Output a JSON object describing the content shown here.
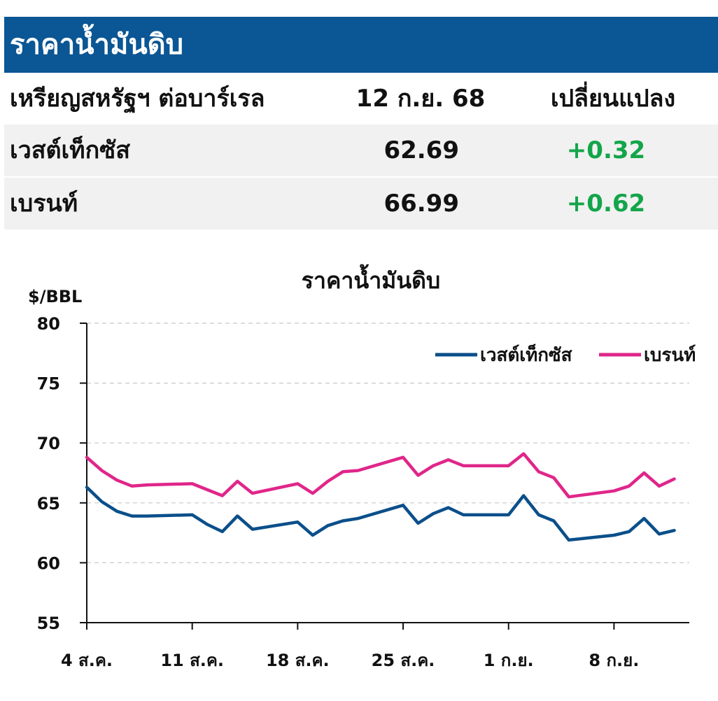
{
  "header": {
    "title": "ราคาน้ำมันดิบ"
  },
  "table": {
    "columns": [
      "เหรียญสหรัฐฯ ต่อบาร์เรล",
      "12 ก.ย. 68",
      "เปลี่ยนแปลง"
    ],
    "rows": [
      {
        "name": "เวสต์เท็กซัส",
        "price": "62.69",
        "change": "+0.32"
      },
      {
        "name": "เบรนท์",
        "price": "66.99",
        "change": "+0.62"
      }
    ]
  },
  "chart_data": {
    "type": "line",
    "title": "ราคาน้ำมันดิบ",
    "ylabel": "$/BBL",
    "ylim": [
      55,
      80
    ],
    "yticks": [
      55,
      60,
      65,
      70,
      75,
      80
    ],
    "xticks": [
      "4 ส.ค.",
      "11 ส.ค.",
      "18 ส.ค.",
      "25 ส.ค.",
      "1 ก.ย.",
      "8 ก.ย."
    ],
    "grid": true,
    "legend_position": "top-right",
    "x": [
      "4 ส.ค.",
      "5 ส.ค.",
      "6 ส.ค.",
      "7 ส.ค.",
      "8 ส.ค.",
      "11 ส.ค.",
      "12 ส.ค.",
      "13 ส.ค.",
      "14 ส.ค.",
      "15 ส.ค.",
      "18 ส.ค.",
      "19 ส.ค.",
      "20 ส.ค.",
      "21 ส.ค.",
      "22 ส.ค.",
      "25 ส.ค.",
      "26 ส.ค.",
      "27 ส.ค.",
      "28 ส.ค.",
      "29 ส.ค.",
      "1 ก.ย.",
      "2 ก.ย.",
      "3 ก.ย.",
      "4 ก.ย.",
      "5 ก.ย.",
      "8 ก.ย.",
      "9 ก.ย.",
      "10 ก.ย.",
      "11 ก.ย.",
      "12 ก.ย."
    ],
    "day_index": [
      0,
      1,
      2,
      3,
      4,
      7,
      8,
      9,
      10,
      11,
      14,
      15,
      16,
      17,
      18,
      21,
      22,
      23,
      24,
      25,
      28,
      29,
      30,
      31,
      32,
      35,
      36,
      37,
      38,
      39
    ],
    "series": [
      {
        "name": "เวสต์เท็กซัส",
        "color": "#0b4f8a",
        "values": [
          66.3,
          65.1,
          64.3,
          63.9,
          63.9,
          64.0,
          63.2,
          62.6,
          63.9,
          62.8,
          63.4,
          62.3,
          63.1,
          63.5,
          63.7,
          64.8,
          63.3,
          64.1,
          64.6,
          64.0,
          64.0,
          65.6,
          64.0,
          63.5,
          61.9,
          62.3,
          62.6,
          63.7,
          62.4,
          62.7
        ]
      },
      {
        "name": "เบรนท์",
        "color": "#e0268a",
        "values": [
          68.8,
          67.7,
          66.9,
          66.4,
          66.5,
          66.6,
          66.1,
          65.6,
          66.8,
          65.8,
          66.6,
          65.8,
          66.8,
          67.6,
          67.7,
          68.8,
          67.3,
          68.1,
          68.6,
          68.1,
          68.1,
          69.1,
          67.6,
          67.1,
          65.5,
          66.0,
          66.4,
          67.5,
          66.4,
          67.0
        ]
      }
    ]
  }
}
